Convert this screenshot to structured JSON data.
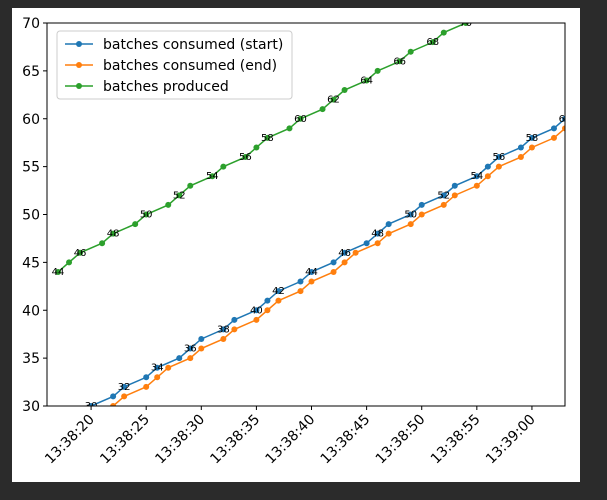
{
  "chart_data": {
    "type": "line",
    "x_blue": null,
    "series": [
      {
        "name": "batches consumed (start)",
        "color": "#1f77b4",
        "x": [
          "13:38:20",
          "13:38:22",
          "13:38:23",
          "13:38:25",
          "13:38:26",
          "13:38:28",
          "13:38:29",
          "13:38:30",
          "13:38:32",
          "13:38:33",
          "13:38:35",
          "13:38:36",
          "13:38:37",
          "13:38:39",
          "13:38:40",
          "13:38:42",
          "13:38:43",
          "13:38:45",
          "13:38:46",
          "13:38:47",
          "13:38:49",
          "13:38:50",
          "13:38:52",
          "13:38:53",
          "13:38:55",
          "13:38:56",
          "13:38:57",
          "13:38:59",
          "13:39:00",
          "13:39:02",
          "13:39:03"
        ],
        "values": [
          30,
          31,
          32,
          33,
          34,
          35,
          36,
          37,
          38,
          39,
          40,
          41,
          42,
          43,
          44,
          45,
          46,
          47,
          48,
          49,
          50,
          51,
          52,
          53,
          54,
          55,
          56,
          57,
          58,
          59,
          60
        ]
      },
      {
        "name": "batches consumed (end)",
        "color": "#ff7f0e",
        "x": [
          "13:38:22",
          "13:38:23",
          "13:38:25",
          "13:38:26",
          "13:38:27",
          "13:38:29",
          "13:38:30",
          "13:38:32",
          "13:38:33",
          "13:38:35",
          "13:38:36",
          "13:38:37",
          "13:38:39",
          "13:38:40",
          "13:38:42",
          "13:38:43",
          "13:38:44",
          "13:38:46",
          "13:38:47",
          "13:38:49",
          "13:38:50",
          "13:38:52",
          "13:38:53",
          "13:38:55",
          "13:38:56",
          "13:38:57",
          "13:38:59",
          "13:39:00",
          "13:39:02",
          "13:39:03"
        ],
        "values": [
          30,
          31,
          32,
          33,
          34,
          35,
          36,
          37,
          38,
          39,
          40,
          41,
          42,
          43,
          44,
          45,
          46,
          47,
          48,
          49,
          50,
          51,
          52,
          53,
          54,
          55,
          56,
          57,
          58,
          59
        ]
      },
      {
        "name": "batches produced",
        "color": "#2ca02c",
        "x": [
          "13:38:17",
          "13:38:18",
          "13:38:19",
          "13:38:21",
          "13:38:22",
          "13:38:24",
          "13:38:25",
          "13:38:27",
          "13:38:28",
          "13:38:29",
          "13:38:31",
          "13:38:32",
          "13:38:34",
          "13:38:35",
          "13:38:36",
          "13:38:38",
          "13:38:39",
          "13:38:41",
          "13:38:42",
          "13:38:43",
          "13:38:45",
          "13:38:46",
          "13:38:48",
          "13:38:49",
          "13:38:51",
          "13:38:52",
          "13:38:54"
        ],
        "values": [
          44,
          45,
          46,
          47,
          48,
          49,
          50,
          51,
          52,
          53,
          54,
          55,
          56,
          57,
          58,
          59,
          60,
          61,
          62,
          63,
          64,
          65,
          66,
          67,
          68,
          69,
          70
        ]
      }
    ],
    "annotated_series": [
      0,
      2
    ],
    "xlim": [
      "13:38:16",
      "13:39:03"
    ],
    "xticks": [
      "13:38:20",
      "13:38:25",
      "13:38:30",
      "13:38:35",
      "13:38:40",
      "13:38:45",
      "13:38:50",
      "13:38:55",
      "13:39:00"
    ],
    "ylim": [
      30,
      70
    ],
    "yticks": [
      30,
      35,
      40,
      45,
      50,
      55,
      60,
      65,
      70
    ],
    "legend": "upper left"
  }
}
